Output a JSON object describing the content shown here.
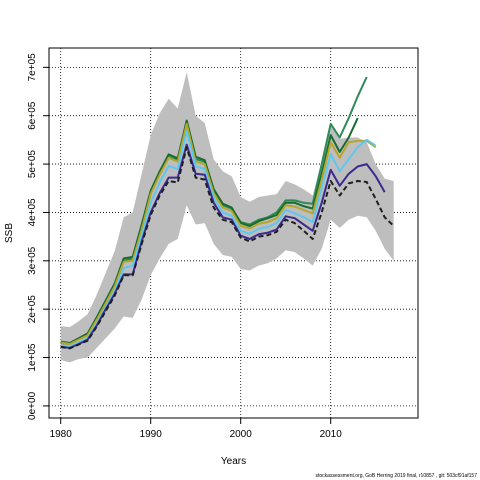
{
  "chart_data": {
    "type": "line",
    "title": "",
    "xlabel": "Years",
    "ylabel": "SSB",
    "xlim": [
      1978.7,
      2019.7
    ],
    "ylim": [
      -25000,
      740000
    ],
    "xticks": [
      1980,
      1990,
      2000,
      2010
    ],
    "xtick_labels": [
      "1980",
      "1990",
      "2000",
      "2010"
    ],
    "yticks": [
      0,
      100000,
      200000,
      300000,
      400000,
      500000,
      600000,
      700000
    ],
    "ytick_labels": [
      "0e+00",
      "1e+05",
      "2e+05",
      "3e+05",
      "4e+05",
      "5e+05",
      "6e+05",
      "7e+05"
    ],
    "grid": true,
    "band": {
      "name": "",
      "color": "#bebebe",
      "x": [
        1980,
        1981,
        1982,
        1983,
        1984,
        1985,
        1986,
        1987,
        1988,
        1989,
        1990,
        1991,
        1992,
        1993,
        1994,
        1995,
        1996,
        1997,
        1998,
        1999,
        2000,
        2001,
        2002,
        2003,
        2004,
        2005,
        2006,
        2007,
        2008,
        2009,
        2010,
        2011,
        2012,
        2013,
        2014,
        2015,
        2016,
        2017
      ],
      "lower": [
        95000,
        90000,
        97000,
        100000,
        120000,
        140000,
        160000,
        185000,
        182000,
        220000,
        270000,
        305000,
        335000,
        345000,
        415000,
        375000,
        378000,
        335000,
        312000,
        308000,
        283000,
        280000,
        290000,
        295000,
        305000,
        322000,
        318000,
        305000,
        290000,
        325000,
        385000,
        368000,
        385000,
        393000,
        390000,
        362000,
        325000,
        300000
      ],
      "upper": [
        165000,
        163000,
        175000,
        190000,
        230000,
        275000,
        320000,
        390000,
        400000,
        480000,
        560000,
        605000,
        635000,
        615000,
        690000,
        600000,
        585000,
        510000,
        485000,
        475000,
        432000,
        422000,
        432000,
        435000,
        438000,
        465000,
        458000,
        448000,
        435000,
        505000,
        580000,
        552000,
        555000,
        555000,
        545000,
        500000,
        470000,
        465000
      ]
    },
    "series": [
      {
        "color": "#2e8b57",
        "x": [
          1980,
          1981,
          1982,
          1983,
          1984,
          1985,
          1986,
          1987,
          1988,
          1989,
          1990,
          1991,
          1992,
          1993,
          1994,
          1995,
          1996,
          1997,
          1998,
          1999,
          2000,
          2001,
          2002,
          2003,
          2004,
          2005,
          2006,
          2007,
          2008,
          2009,
          2010,
          2011,
          2012,
          2013,
          2014
        ],
        "values": [
          130000,
          128000,
          138000,
          148000,
          180000,
          215000,
          250000,
          300000,
          305000,
          370000,
          440000,
          480000,
          515000,
          508000,
          585000,
          510000,
          505000,
          445000,
          415000,
          408000,
          380000,
          375000,
          385000,
          390000,
          400000,
          425000,
          425000,
          420000,
          418000,
          500000,
          583000,
          555000,
          595000,
          640000,
          680000
        ]
      },
      {
        "color": "#1a6b2e",
        "x": [
          1980,
          1981,
          1982,
          1983,
          1984,
          1985,
          1986,
          1987,
          1988,
          1989,
          1990,
          1991,
          1992,
          1993,
          1994,
          1995,
          1996,
          1997,
          1998,
          1999,
          2000,
          2001,
          2002,
          2003,
          2004,
          2005,
          2006,
          2007,
          2008,
          2009,
          2010,
          2011,
          2012,
          2013
        ],
        "values": [
          133000,
          130000,
          140000,
          150000,
          183000,
          218000,
          253000,
          305000,
          308000,
          375000,
          445000,
          485000,
          520000,
          512000,
          590000,
          515000,
          508000,
          448000,
          418000,
          410000,
          378000,
          372000,
          382000,
          388000,
          395000,
          420000,
          420000,
          413000,
          408000,
          480000,
          560000,
          525000,
          555000,
          595000
        ]
      },
      {
        "color": "#b5a62c",
        "x": [
          1980,
          1981,
          1982,
          1983,
          1984,
          1985,
          1986,
          1987,
          1988,
          1989,
          1990,
          1991,
          1992,
          1993,
          1994,
          1995,
          1996,
          1997,
          1998,
          1999,
          2000,
          2001,
          2002,
          2003,
          2004,
          2005,
          2006,
          2007,
          2008,
          2009,
          2010,
          2011,
          2012,
          2013,
          2014,
          2015
        ],
        "values": [
          131000,
          128000,
          137000,
          146000,
          178000,
          212000,
          247000,
          298000,
          300000,
          365000,
          438000,
          478000,
          513000,
          505000,
          583000,
          505000,
          500000,
          440000,
          410000,
          403000,
          372000,
          367000,
          377000,
          380000,
          388000,
          415000,
          412000,
          405000,
          398000,
          468000,
          545000,
          513000,
          545000,
          548000,
          548000,
          535000
        ]
      },
      {
        "color": "#5fc7ee",
        "x": [
          1980,
          1981,
          1982,
          1983,
          1984,
          1985,
          1986,
          1987,
          1988,
          1989,
          1990,
          1991,
          1992,
          1993,
          1994,
          1995,
          1996,
          1997,
          1998,
          1999,
          2000,
          2001,
          2002,
          2003,
          2004,
          2005,
          2006,
          2007,
          2008,
          2009,
          2010,
          2011,
          2012,
          2013,
          2014,
          2015
        ],
        "values": [
          125000,
          122000,
          131000,
          140000,
          170000,
          204000,
          238000,
          285000,
          290000,
          352000,
          420000,
          462000,
          496000,
          490000,
          568000,
          495000,
          490000,
          430000,
          400000,
          393000,
          362000,
          356000,
          366000,
          370000,
          378000,
          405000,
          398000,
          390000,
          380000,
          450000,
          520000,
          485000,
          510000,
          535000,
          550000,
          538000
        ]
      },
      {
        "color": "#3b2a8f",
        "x": [
          1980,
          1981,
          1982,
          1983,
          1984,
          1985,
          1986,
          1987,
          1988,
          1989,
          1990,
          1991,
          1992,
          1993,
          1994,
          1995,
          1996,
          1997,
          1998,
          1999,
          2000,
          2001,
          2002,
          2003,
          2004,
          2005,
          2006,
          2007,
          2008,
          2009,
          2010,
          2011,
          2012,
          2013,
          2014,
          2015,
          2016
        ],
        "values": [
          122000,
          120000,
          128000,
          137000,
          166000,
          200000,
          232000,
          272000,
          272000,
          340000,
          400000,
          440000,
          472000,
          472000,
          540000,
          480000,
          478000,
          420000,
          390000,
          385000,
          352000,
          345000,
          355000,
          358000,
          365000,
          392000,
          388000,
          375000,
          362000,
          420000,
          488000,
          455000,
          480000,
          495000,
          500000,
          475000,
          442000
        ]
      },
      {
        "color": "#1f1f1f",
        "dashed": true,
        "x": [
          1980,
          1981,
          1982,
          1983,
          1984,
          1985,
          1986,
          1987,
          1988,
          1989,
          1990,
          1991,
          1992,
          1993,
          1994,
          1995,
          1996,
          1997,
          1998,
          1999,
          2000,
          2001,
          2002,
          2003,
          2004,
          2005,
          2006,
          2007,
          2008,
          2009,
          2010,
          2011,
          2012,
          2013,
          2014,
          2015,
          2016,
          2017
        ],
        "values": [
          122000,
          119000,
          127000,
          135000,
          164000,
          196000,
          228000,
          270000,
          270000,
          335000,
          395000,
          435000,
          465000,
          462000,
          535000,
          472000,
          468000,
          410000,
          385000,
          380000,
          348000,
          340000,
          350000,
          353000,
          360000,
          385000,
          378000,
          362000,
          345000,
          400000,
          465000,
          435000,
          460000,
          465000,
          463000,
          428000,
          390000,
          372000
        ]
      }
    ]
  },
  "footer": {
    "credit": "stockassessment.org, GoB Herring 2019 final, r10857 , git: 503cf91af157"
  }
}
